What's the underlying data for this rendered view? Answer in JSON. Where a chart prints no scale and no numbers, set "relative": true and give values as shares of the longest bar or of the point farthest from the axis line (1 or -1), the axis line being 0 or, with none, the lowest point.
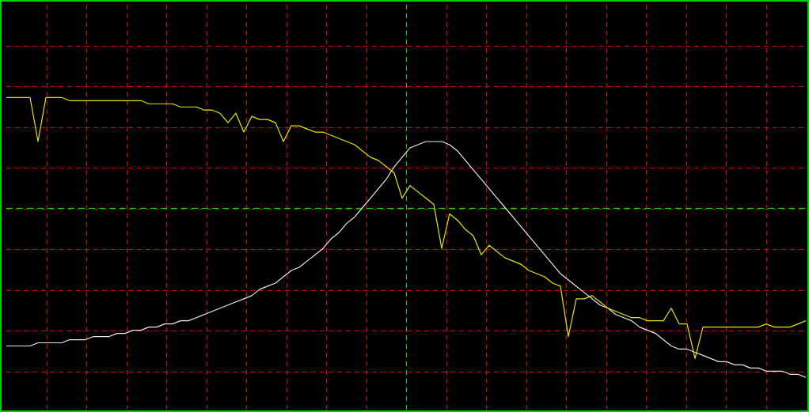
{
  "chart_data": {
    "type": "line",
    "relative": true,
    "ref_lines": [
      {
        "axis": "y",
        "value": 0.65,
        "color": "#00e000",
        "line_style": "dashed"
      }
    ],
    "grid": true,
    "legend": false,
    "marker": "none",
    "line_style": "solid",
    "categories": [
      null,
      null,
      null,
      null,
      null,
      null,
      null,
      null,
      null,
      null,
      null,
      null,
      null,
      null,
      null,
      null,
      null,
      null,
      null,
      null,
      null,
      null,
      null,
      null,
      null,
      null,
      null,
      null,
      null,
      null,
      null,
      null,
      null,
      null,
      null,
      null,
      null,
      null,
      null,
      null,
      null,
      null,
      null,
      null,
      null,
      null,
      null,
      null,
      null,
      null,
      null,
      null,
      null,
      null,
      null,
      null,
      null,
      null,
      null,
      null,
      null,
      null,
      null,
      null,
      null,
      null,
      null,
      null,
      null,
      null,
      null,
      null,
      null,
      null,
      null,
      null,
      null,
      null,
      null,
      null,
      null,
      null,
      null,
      null,
      null,
      null,
      null,
      null,
      null,
      null,
      null,
      null,
      null,
      null,
      null,
      null,
      null,
      null,
      null,
      null,
      null,
      null
    ],
    "series": [
      {
        "color": "#e6e600",
        "values": [
          1.0,
          1.0,
          1.0,
          1.0,
          0.86,
          1.0,
          1.0,
          1.0,
          0.99,
          0.99,
          0.99,
          0.99,
          0.99,
          0.99,
          0.99,
          0.99,
          0.99,
          0.99,
          0.98,
          0.98,
          0.98,
          0.98,
          0.97,
          0.97,
          0.97,
          0.96,
          0.96,
          0.95,
          0.92,
          0.95,
          0.89,
          0.94,
          0.93,
          0.93,
          0.92,
          0.86,
          0.91,
          0.91,
          0.9,
          0.89,
          0.89,
          0.88,
          0.87,
          0.86,
          0.85,
          0.83,
          0.81,
          0.8,
          0.78,
          0.76,
          0.68,
          0.72,
          0.7,
          0.68,
          0.66,
          0.52,
          0.63,
          0.61,
          0.58,
          0.56,
          0.5,
          0.53,
          0.51,
          0.49,
          0.48,
          0.47,
          0.45,
          0.44,
          0.43,
          0.41,
          0.4,
          0.24,
          0.36,
          0.36,
          0.37,
          0.35,
          0.33,
          0.32,
          0.31,
          0.3,
          0.3,
          0.29,
          0.29,
          0.29,
          0.33,
          0.28,
          0.28,
          0.17,
          0.27,
          0.27,
          0.27,
          0.27,
          0.27,
          0.27,
          0.27,
          0.27,
          0.28,
          0.27,
          0.27,
          0.27,
          0.28,
          0.29
        ]
      },
      {
        "color": "#e8e8e8",
        "values": [
          0.21,
          0.21,
          0.21,
          0.21,
          0.22,
          0.22,
          0.22,
          0.22,
          0.23,
          0.23,
          0.23,
          0.24,
          0.24,
          0.24,
          0.25,
          0.25,
          0.26,
          0.26,
          0.27,
          0.27,
          0.28,
          0.28,
          0.29,
          0.29,
          0.3,
          0.31,
          0.32,
          0.33,
          0.34,
          0.35,
          0.36,
          0.37,
          0.39,
          0.4,
          0.41,
          0.43,
          0.45,
          0.46,
          0.48,
          0.5,
          0.52,
          0.55,
          0.57,
          0.6,
          0.62,
          0.65,
          0.68,
          0.71,
          0.74,
          0.78,
          0.81,
          0.84,
          0.85,
          0.86,
          0.86,
          0.86,
          0.85,
          0.83,
          0.8,
          0.77,
          0.74,
          0.71,
          0.68,
          0.65,
          0.62,
          0.59,
          0.56,
          0.53,
          0.5,
          0.47,
          0.44,
          0.42,
          0.4,
          0.38,
          0.36,
          0.34,
          0.33,
          0.31,
          0.3,
          0.29,
          0.27,
          0.26,
          0.25,
          0.23,
          0.21,
          0.2,
          0.2,
          0.19,
          0.18,
          0.17,
          0.16,
          0.16,
          0.15,
          0.15,
          0.14,
          0.14,
          0.13,
          0.13,
          0.13,
          0.12,
          0.12,
          0.11
        ]
      }
    ]
  }
}
